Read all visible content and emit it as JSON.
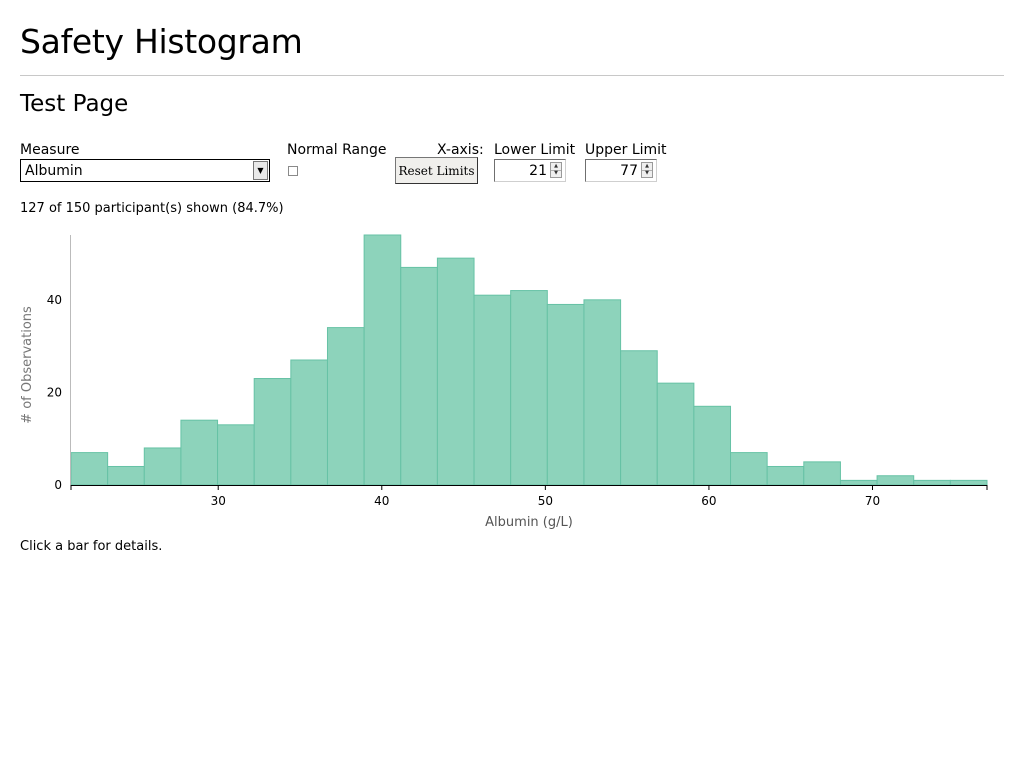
{
  "header": {
    "title": "Safety Histogram",
    "subtitle": "Test Page"
  },
  "controls": {
    "measure_label": "Measure",
    "measure_value": "Albumin",
    "normal_range_label": "Normal Range",
    "normal_range_checked": false,
    "xaxis_label": "X-axis:",
    "reset_label": "Reset Limits",
    "lower_label": "Lower Limit",
    "lower_value": "21",
    "upper_label": "Upper Limit",
    "upper_value": "77"
  },
  "status": {
    "count_text": "127 of 150 participant(s) shown (84.7%)"
  },
  "footer": {
    "hint": "Click a bar for details."
  },
  "colors": {
    "bar_fill": "#8dd3bb",
    "bar_stroke": "#66c2a5",
    "axis": "#000000",
    "axis_label": "#555555"
  },
  "chart_data": {
    "type": "bar",
    "title": "",
    "xlabel": "Albumin (g/L)",
    "ylabel": "# of Observations",
    "xlim": [
      21,
      77
    ],
    "ylim": [
      0,
      54
    ],
    "xticks": [
      30,
      40,
      50,
      60,
      70
    ],
    "yticks": [
      0,
      20,
      40
    ],
    "grid": false,
    "bins": [
      {
        "x0": 21.0,
        "x1": 23.24,
        "count": 7
      },
      {
        "x0": 23.24,
        "x1": 25.48,
        "count": 4
      },
      {
        "x0": 25.48,
        "x1": 27.72,
        "count": 8
      },
      {
        "x0": 27.72,
        "x1": 29.96,
        "count": 14
      },
      {
        "x0": 29.96,
        "x1": 32.2,
        "count": 13
      },
      {
        "x0": 32.2,
        "x1": 34.44,
        "count": 23
      },
      {
        "x0": 34.44,
        "x1": 36.68,
        "count": 27
      },
      {
        "x0": 36.68,
        "x1": 38.92,
        "count": 34
      },
      {
        "x0": 38.92,
        "x1": 41.16,
        "count": 54
      },
      {
        "x0": 41.16,
        "x1": 43.4,
        "count": 47
      },
      {
        "x0": 43.4,
        "x1": 45.64,
        "count": 49
      },
      {
        "x0": 45.64,
        "x1": 47.88,
        "count": 41
      },
      {
        "x0": 47.88,
        "x1": 50.12,
        "count": 42
      },
      {
        "x0": 50.12,
        "x1": 52.36,
        "count": 39
      },
      {
        "x0": 52.36,
        "x1": 54.6,
        "count": 40
      },
      {
        "x0": 54.6,
        "x1": 56.84,
        "count": 29
      },
      {
        "x0": 56.84,
        "x1": 59.08,
        "count": 22
      },
      {
        "x0": 59.08,
        "x1": 61.32,
        "count": 17
      },
      {
        "x0": 61.32,
        "x1": 63.56,
        "count": 7
      },
      {
        "x0": 63.56,
        "x1": 65.8,
        "count": 4
      },
      {
        "x0": 65.8,
        "x1": 68.04,
        "count": 5
      },
      {
        "x0": 68.04,
        "x1": 70.28,
        "count": 1
      },
      {
        "x0": 70.28,
        "x1": 72.52,
        "count": 2
      },
      {
        "x0": 72.52,
        "x1": 74.76,
        "count": 1
      },
      {
        "x0": 74.76,
        "x1": 77.0,
        "count": 1
      }
    ]
  }
}
